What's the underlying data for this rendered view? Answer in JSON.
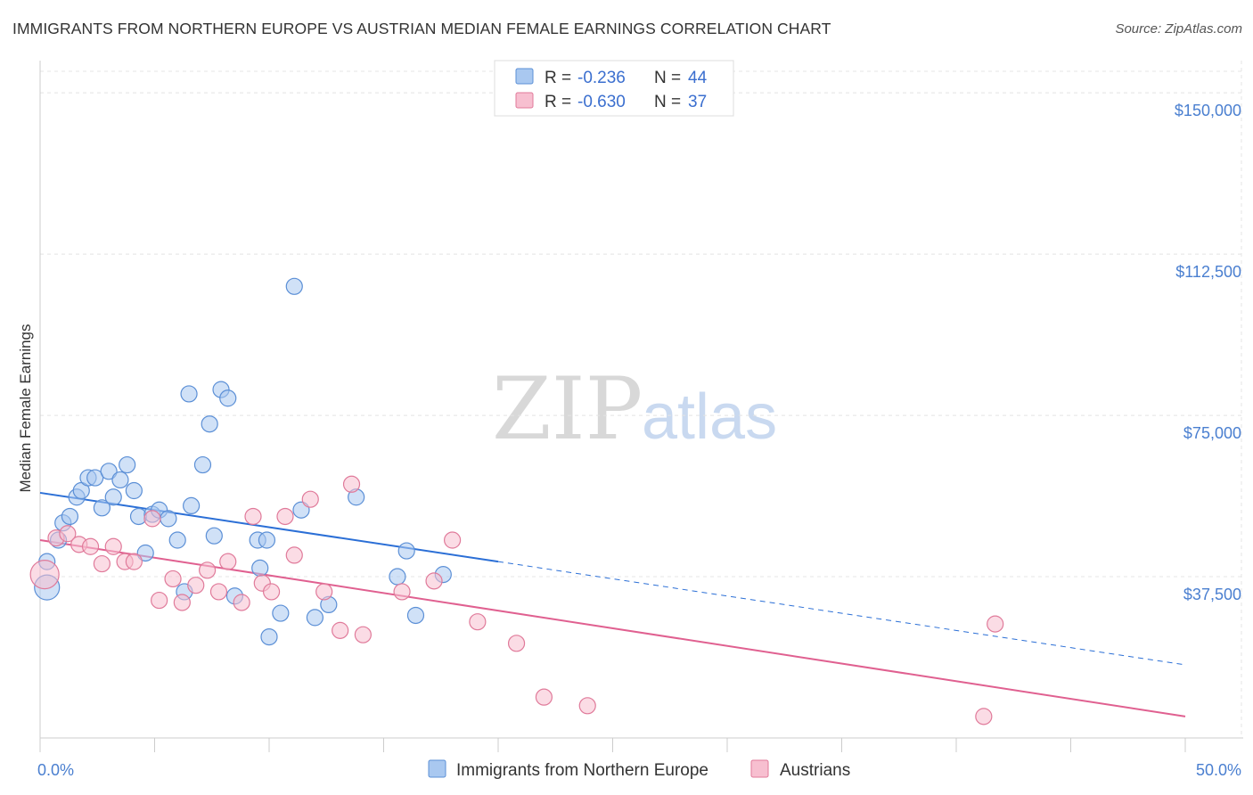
{
  "header": {
    "title": "IMMIGRANTS FROM NORTHERN EUROPE VS AUSTRIAN MEDIAN FEMALE EARNINGS CORRELATION CHART",
    "source": "Source: ZipAtlas.com"
  },
  "watermark": {
    "zip": "ZIP",
    "atlas": "atlas"
  },
  "stats_legend": [
    {
      "r_label": "R =",
      "r_value": "-0.236",
      "n_label": "N =",
      "n_value": "44",
      "color": "#a9c8f0",
      "stroke": "#5b8fd6"
    },
    {
      "r_label": "R =",
      "r_value": "-0.630",
      "n_label": "N =",
      "n_value": "37",
      "color": "#f7bfd0",
      "stroke": "#e07a9a"
    }
  ],
  "chart_data": {
    "type": "scatter",
    "title": "IMMIGRANTS FROM NORTHERN EUROPE VS AUSTRIAN MEDIAN FEMALE EARNINGS CORRELATION CHART",
    "xlabel": "",
    "ylabel": "Median Female Earnings",
    "xlim": [
      0,
      50
    ],
    "ylim": [
      0,
      155000
    ],
    "x_tick_labels": [
      "0.0%",
      "50.0%"
    ],
    "y_ticks": [
      37500,
      75000,
      112500,
      150000
    ],
    "y_tick_labels": [
      "$37,500",
      "$75,000",
      "$112,500",
      "$150,000"
    ],
    "grid": true,
    "legend_position": "bottom",
    "series": [
      {
        "name": "Immigrants from Northern Europe",
        "color": "#a9c8f0",
        "stroke": "#5b8fd6",
        "trend": {
          "x0": 0,
          "y0": 57000,
          "x1": 20,
          "y1": 41000,
          "dashed_to_x": 50,
          "dashed_to_y": 17000,
          "color": "#2b6fd6"
        },
        "points": [
          [
            0.3,
            35000
          ],
          [
            0.3,
            41000
          ],
          [
            0.8,
            46000
          ],
          [
            1.0,
            50000
          ],
          [
            1.3,
            51500
          ],
          [
            1.6,
            56000
          ],
          [
            1.8,
            57500
          ],
          [
            2.1,
            60500
          ],
          [
            2.4,
            60500
          ],
          [
            2.7,
            53500
          ],
          [
            3.0,
            62000
          ],
          [
            3.2,
            56000
          ],
          [
            3.5,
            60000
          ],
          [
            3.8,
            63500
          ],
          [
            4.1,
            57500
          ],
          [
            4.3,
            51500
          ],
          [
            4.6,
            43000
          ],
          [
            4.9,
            52000
          ],
          [
            5.2,
            53000
          ],
          [
            5.6,
            51000
          ],
          [
            6.0,
            46000
          ],
          [
            6.3,
            34000
          ],
          [
            6.5,
            80000
          ],
          [
            6.6,
            54000
          ],
          [
            7.1,
            63500
          ],
          [
            7.4,
            73000
          ],
          [
            7.6,
            47000
          ],
          [
            7.9,
            81000
          ],
          [
            8.2,
            79000
          ],
          [
            8.5,
            33000
          ],
          [
            9.5,
            46000
          ],
          [
            9.6,
            39500
          ],
          [
            9.9,
            46000
          ],
          [
            10.5,
            29000
          ],
          [
            10.0,
            23500
          ],
          [
            11.1,
            105000
          ],
          [
            11.4,
            53000
          ],
          [
            12.0,
            28000
          ],
          [
            12.6,
            31000
          ],
          [
            13.8,
            56000
          ],
          [
            16.0,
            43500
          ],
          [
            15.6,
            37500
          ],
          [
            16.4,
            28500
          ],
          [
            17.6,
            38000
          ]
        ]
      },
      {
        "name": "Austrians",
        "color": "#f7bfd0",
        "stroke": "#e07a9a",
        "trend": {
          "x0": 0,
          "y0": 46000,
          "x1": 50,
          "y1": 5000,
          "color": "#e06090"
        },
        "points": [
          [
            0.2,
            38000
          ],
          [
            0.7,
            46500
          ],
          [
            1.2,
            47500
          ],
          [
            1.7,
            45000
          ],
          [
            2.2,
            44500
          ],
          [
            2.7,
            40500
          ],
          [
            3.2,
            44500
          ],
          [
            3.7,
            41000
          ],
          [
            4.1,
            41000
          ],
          [
            4.9,
            51000
          ],
          [
            5.2,
            32000
          ],
          [
            5.8,
            37000
          ],
          [
            6.2,
            31500
          ],
          [
            6.8,
            35500
          ],
          [
            7.3,
            39000
          ],
          [
            7.8,
            34000
          ],
          [
            8.2,
            41000
          ],
          [
            8.8,
            31500
          ],
          [
            9.3,
            51500
          ],
          [
            9.7,
            36000
          ],
          [
            10.1,
            34000
          ],
          [
            10.7,
            51500
          ],
          [
            11.1,
            42500
          ],
          [
            11.8,
            55500
          ],
          [
            12.4,
            34000
          ],
          [
            13.1,
            25000
          ],
          [
            13.6,
            59000
          ],
          [
            14.1,
            24000
          ],
          [
            15.8,
            34000
          ],
          [
            17.2,
            36500
          ],
          [
            18.0,
            46000
          ],
          [
            19.1,
            27000
          ],
          [
            20.8,
            22000
          ],
          [
            22.0,
            9500
          ],
          [
            23.9,
            7500
          ],
          [
            41.7,
            26500
          ],
          [
            41.2,
            5000
          ]
        ]
      }
    ]
  }
}
